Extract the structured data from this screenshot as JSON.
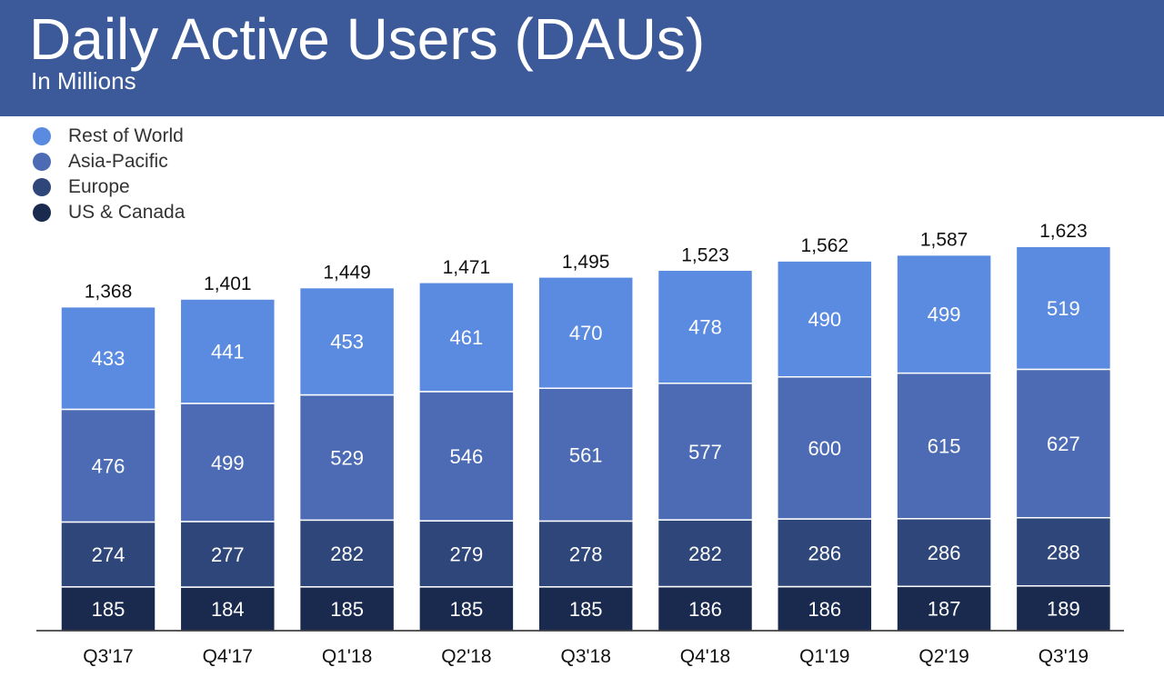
{
  "header": {
    "title": "Daily Active Users (DAUs)",
    "subtitle": "In Millions"
  },
  "colors": {
    "header_bg": "#3c5a99",
    "rest_of_world": "#5b8be0",
    "asia_pacific": "#4c6bb4",
    "europe": "#2e4679",
    "us_canada": "#1a2a4f"
  },
  "chart_data": {
    "type": "bar",
    "stacked": true,
    "title": "Daily Active Users (DAUs)",
    "subtitle": "In Millions",
    "categories": [
      "Q3'17",
      "Q4'17",
      "Q1'18",
      "Q2'18",
      "Q3'18",
      "Q4'18",
      "Q1'19",
      "Q2'19",
      "Q3'19"
    ],
    "series": [
      {
        "name": "US & Canada",
        "color": "#1a2a4f",
        "values": [
          185,
          184,
          185,
          185,
          185,
          186,
          186,
          187,
          189
        ]
      },
      {
        "name": "Europe",
        "color": "#2e4679",
        "values": [
          274,
          277,
          282,
          279,
          278,
          282,
          286,
          286,
          288
        ]
      },
      {
        "name": "Asia-Pacific",
        "color": "#4c6bb4",
        "values": [
          476,
          499,
          529,
          546,
          561,
          577,
          600,
          615,
          627
        ]
      },
      {
        "name": "Rest of World",
        "color": "#5b8be0",
        "values": [
          433,
          441,
          453,
          461,
          470,
          478,
          490,
          499,
          519
        ]
      }
    ],
    "totals": [
      "1,368",
      "1,401",
      "1,449",
      "1,471",
      "1,495",
      "1,523",
      "1,562",
      "1,587",
      "1,623"
    ],
    "legend_order": [
      "Rest of World",
      "Asia-Pacific",
      "Europe",
      "US & Canada"
    ],
    "legend_position": "top-left",
    "grid": false,
    "xlabel": "",
    "ylabel": ""
  }
}
